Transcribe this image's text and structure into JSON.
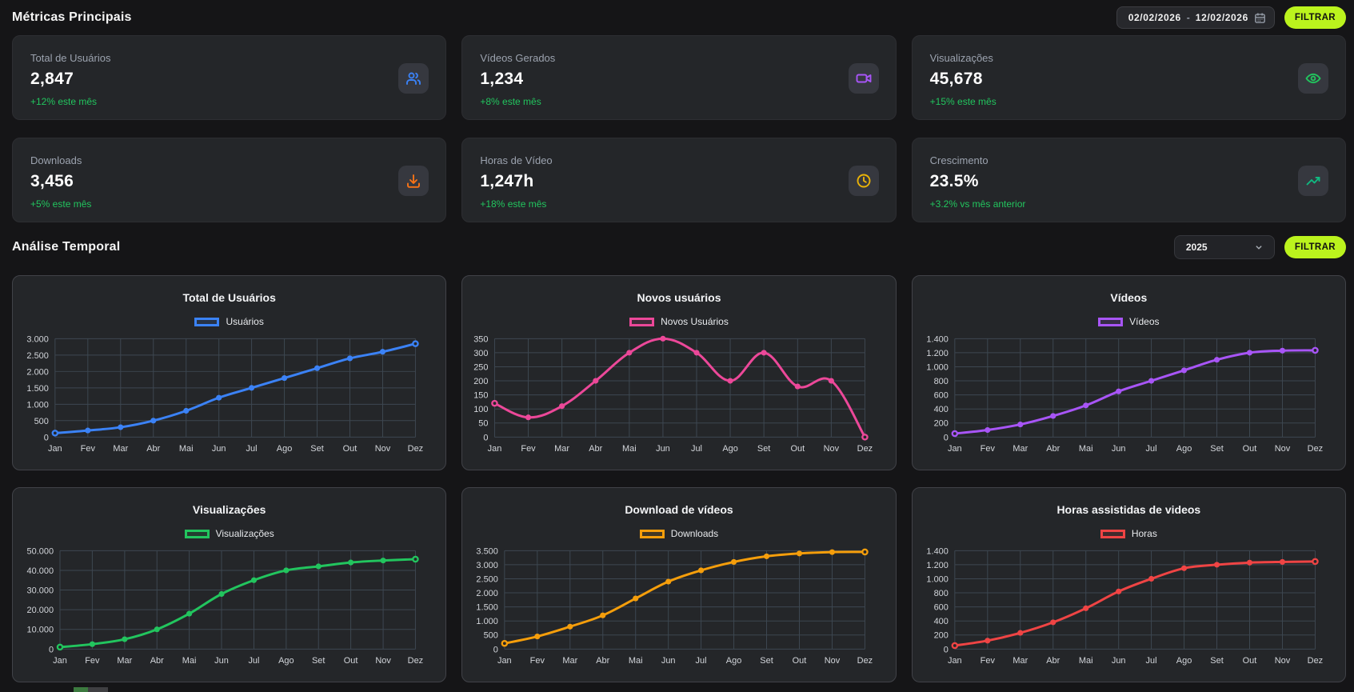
{
  "page": {
    "metrics_title": "Métricas Principais",
    "temporal_title": "Análise Temporal"
  },
  "filters": {
    "date_start": "02/02/2026",
    "date_separator": "-",
    "date_end": "12/02/2026",
    "filter_label": "FILTRAR",
    "year_value": "2025"
  },
  "colors": {
    "page_bg": "#151517",
    "card_bg": "#242629",
    "accent_lime": "#bbf31d",
    "positive_green": "#22c55e",
    "fragment_green": "#3c7a3f",
    "fragment_gray": "#3f3f42"
  },
  "metrics": [
    {
      "label": "Total de Usuários",
      "value": "2,847",
      "change": "+12% este mês",
      "icon": "users-icon",
      "icon_color": "#3b82f6"
    },
    {
      "label": "Vídeos Gerados",
      "value": "1,234",
      "change": "+8% este mês",
      "icon": "video-icon",
      "icon_color": "#a855f7"
    },
    {
      "label": "Visualizações",
      "value": "45,678",
      "change": "+15% este mês",
      "icon": "eye-icon",
      "icon_color": "#22c55e"
    },
    {
      "label": "Downloads",
      "value": "3,456",
      "change": "+5% este mês",
      "icon": "download-icon",
      "icon_color": "#f97316"
    },
    {
      "label": "Horas de Vídeo",
      "value": "1,247h",
      "change": "+18% este mês",
      "icon": "clock-icon",
      "icon_color": "#eab308"
    },
    {
      "label": "Crescimento",
      "value": "23.5%",
      "change": "+3.2% vs mês anterior",
      "icon": "trending-up-icon",
      "icon_color": "#10b981"
    }
  ],
  "chart_categories": [
    "Jan",
    "Fev",
    "Mar",
    "Abr",
    "Mai",
    "Jun",
    "Jul",
    "Ago",
    "Set",
    "Out",
    "Nov",
    "Dez"
  ],
  "chart_data": [
    {
      "type": "line",
      "title": "Total de Usuários",
      "legend": "Usuários",
      "color": "#3b82f6",
      "grid": true,
      "legend_position": "top",
      "values": [
        120,
        200,
        300,
        500,
        800,
        1200,
        1500,
        1800,
        2100,
        2400,
        2600,
        2847
      ],
      "ylim": [
        0,
        3000
      ],
      "y_ticks": [
        {
          "v": 0,
          "label": "0"
        },
        {
          "v": 500,
          "label": "500"
        },
        {
          "v": 1000,
          "label": "1.000"
        },
        {
          "v": 1500,
          "label": "1.500"
        },
        {
          "v": 2000,
          "label": "2.000"
        },
        {
          "v": 2500,
          "label": "2.500"
        },
        {
          "v": 3000,
          "label": "3.000"
        }
      ]
    },
    {
      "type": "line",
      "title": "Novos usuários",
      "legend": "Novos Usuários",
      "color": "#ec4899",
      "grid": true,
      "legend_position": "top",
      "values": [
        120,
        70,
        110,
        200,
        300,
        350,
        300,
        200,
        300,
        180,
        200,
        0
      ],
      "ylim": [
        0,
        350
      ],
      "y_ticks": [
        {
          "v": 0,
          "label": "0"
        },
        {
          "v": 50,
          "label": "50"
        },
        {
          "v": 100,
          "label": "100"
        },
        {
          "v": 150,
          "label": "150"
        },
        {
          "v": 200,
          "label": "200"
        },
        {
          "v": 250,
          "label": "250"
        },
        {
          "v": 300,
          "label": "300"
        },
        {
          "v": 350,
          "label": "350"
        }
      ]
    },
    {
      "type": "line",
      "title": "Vídeos",
      "legend": "Vídeos",
      "color": "#a855f7",
      "grid": true,
      "legend_position": "top",
      "values": [
        50,
        100,
        180,
        300,
        450,
        650,
        800,
        950,
        1100,
        1200,
        1230,
        1234
      ],
      "ylim": [
        0,
        1400
      ],
      "y_ticks": [
        {
          "v": 0,
          "label": "0"
        },
        {
          "v": 200,
          "label": "200"
        },
        {
          "v": 400,
          "label": "400"
        },
        {
          "v": 600,
          "label": "600"
        },
        {
          "v": 800,
          "label": "800"
        },
        {
          "v": 1000,
          "label": "1.000"
        },
        {
          "v": 1200,
          "label": "1.200"
        },
        {
          "v": 1400,
          "label": "1.400"
        }
      ]
    },
    {
      "type": "line",
      "title": "Visualizações",
      "legend": "Visualizações",
      "color": "#22c55e",
      "grid": true,
      "legend_position": "top",
      "values": [
        1000,
        2500,
        5000,
        10000,
        18000,
        28000,
        35000,
        40000,
        42000,
        44000,
        45000,
        45678
      ],
      "ylim": [
        0,
        50000
      ],
      "y_ticks": [
        {
          "v": 0,
          "label": "0"
        },
        {
          "v": 10000,
          "label": "10.000"
        },
        {
          "v": 20000,
          "label": "20.000"
        },
        {
          "v": 30000,
          "label": "30.000"
        },
        {
          "v": 40000,
          "label": "40.000"
        },
        {
          "v": 50000,
          "label": "50.000"
        }
      ]
    },
    {
      "type": "line",
      "title": "Download de vídeos",
      "legend": "Downloads",
      "color": "#f59e0b",
      "grid": true,
      "legend_position": "top",
      "values": [
        200,
        450,
        800,
        1200,
        1800,
        2400,
        2800,
        3100,
        3300,
        3400,
        3450,
        3456
      ],
      "ylim": [
        0,
        3500
      ],
      "y_ticks": [
        {
          "v": 0,
          "label": "0"
        },
        {
          "v": 500,
          "label": "500"
        },
        {
          "v": 1000,
          "label": "1.000"
        },
        {
          "v": 1500,
          "label": "1.500"
        },
        {
          "v": 2000,
          "label": "2.000"
        },
        {
          "v": 2500,
          "label": "2.500"
        },
        {
          "v": 3000,
          "label": "3.000"
        },
        {
          "v": 3500,
          "label": "3.500"
        }
      ]
    },
    {
      "type": "line",
      "title": "Horas assistidas de videos",
      "legend": "Horas",
      "color": "#ef4444",
      "grid": true,
      "legend_position": "top",
      "values": [
        50,
        120,
        230,
        380,
        580,
        820,
        1000,
        1150,
        1200,
        1230,
        1240,
        1247
      ],
      "ylim": [
        0,
        1400
      ],
      "y_ticks": [
        {
          "v": 0,
          "label": "0"
        },
        {
          "v": 200,
          "label": "200"
        },
        {
          "v": 400,
          "label": "400"
        },
        {
          "v": 600,
          "label": "600"
        },
        {
          "v": 800,
          "label": "800"
        },
        {
          "v": 1000,
          "label": "1.000"
        },
        {
          "v": 1200,
          "label": "1.200"
        },
        {
          "v": 1400,
          "label": "1.400"
        }
      ]
    }
  ]
}
